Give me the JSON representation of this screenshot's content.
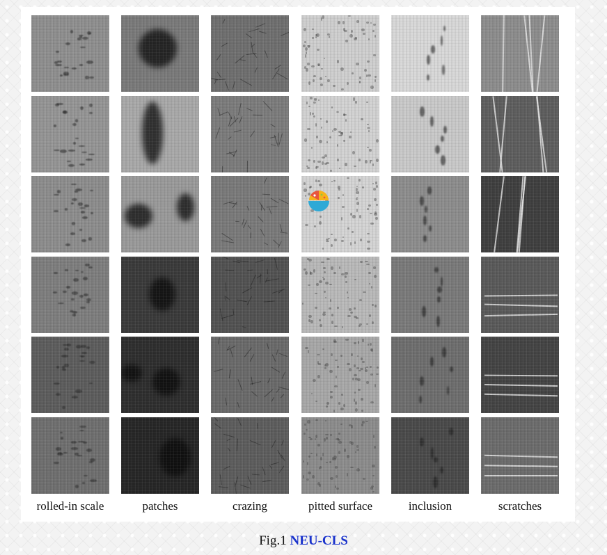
{
  "columns": [
    {
      "label": "rolled-in scale",
      "kind": "rolled"
    },
    {
      "label": "patches",
      "kind": "patches"
    },
    {
      "label": "crazing",
      "kind": "crazing"
    },
    {
      "label": "pitted surface",
      "kind": "pitted"
    },
    {
      "label": "inclusion",
      "kind": "inclusion"
    },
    {
      "label": "scratches",
      "kind": "scratches"
    }
  ],
  "tones": [
    [
      "#8f8f8f",
      "#7a7a7a",
      "#6f6f6f",
      "#cfcfcf",
      "#d8d8d8",
      "#8d8d8d"
    ],
    [
      "#959595",
      "#a9a9a9",
      "#7c7c7c",
      "#d2d2d2",
      "#c9c9c9",
      "#5e5e5e"
    ],
    [
      "#8d8d8d",
      "#9a9a9a",
      "#7a7a7a",
      "#d4d4d4",
      "#8d8d8d",
      "#3f3f3f"
    ],
    [
      "#7e7e7e",
      "#3a3a3a",
      "#525252",
      "#b9b9b9",
      "#7a7a7a",
      "#5a5a5a"
    ],
    [
      "#5d5d5d",
      "#2e2e2e",
      "#6a6a6a",
      "#a8a8a8",
      "#6e6e6e",
      "#444444"
    ],
    [
      "#6f6f6f",
      "#262626",
      "#5d5d5d",
      "#8c8c8c",
      "#4a4a4a",
      "#6c6c6c"
    ]
  ],
  "caption": {
    "prefix": "Fig.1",
    "link": "NEU-CLS"
  },
  "logo_colors": [
    "#e8553e",
    "#f5b31b",
    "#2fa9d6",
    "#8cc63f"
  ]
}
